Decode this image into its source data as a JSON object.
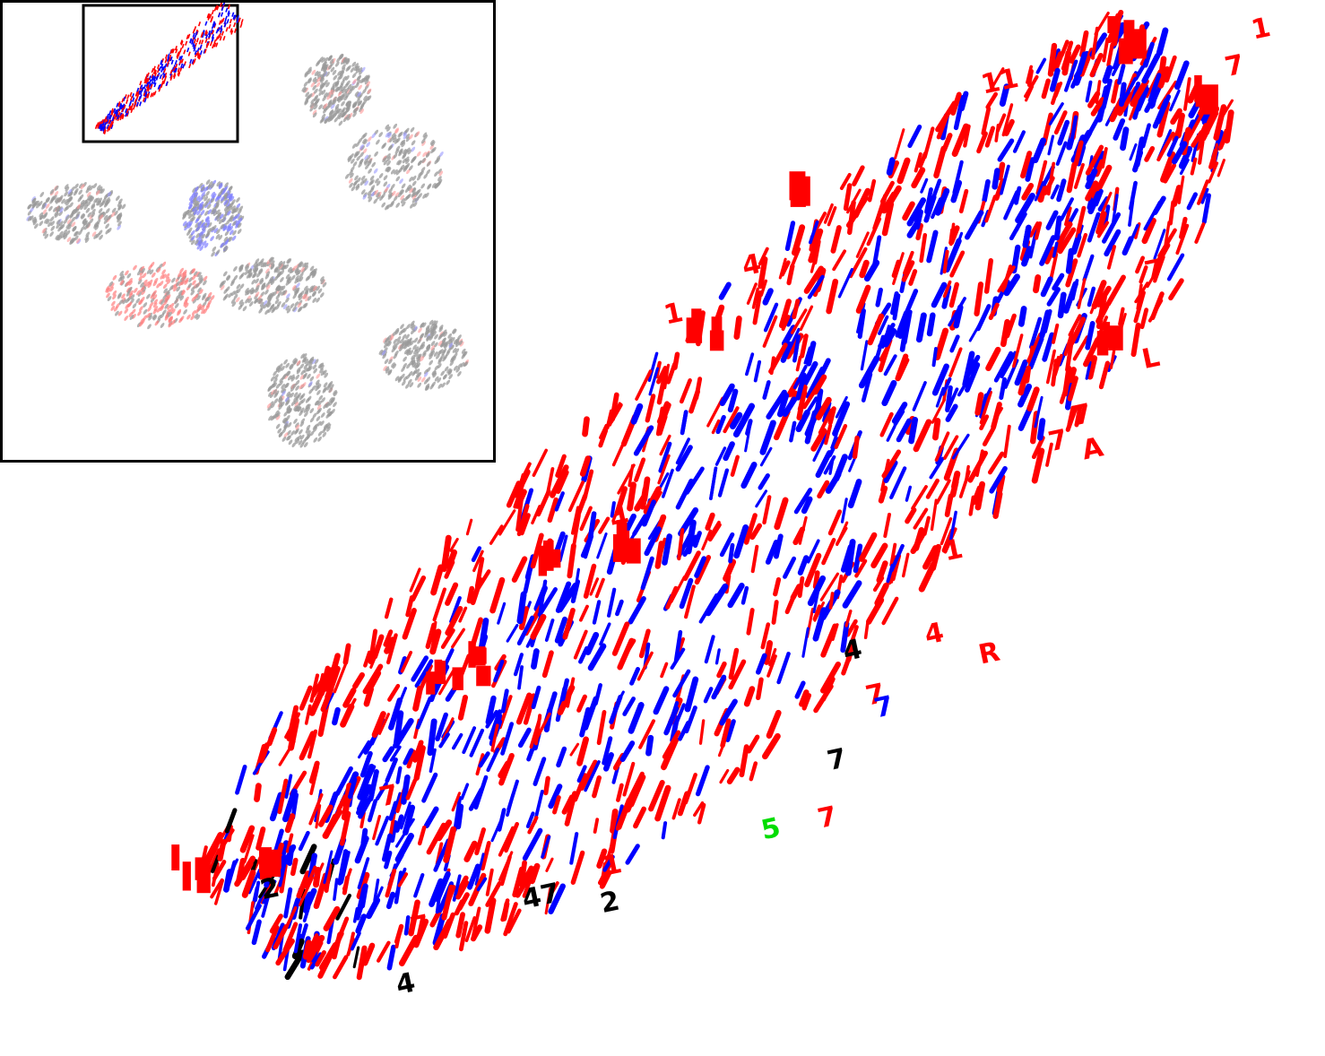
{
  "chart_data": {
    "type": "scatter",
    "title": "",
    "xlabel": "",
    "ylabel": "",
    "grid": false,
    "legend": "none",
    "description_of_marks": "handwritten digit thumbnails plotted at embedding coordinates",
    "colors": {
      "class_red": "#ff0000",
      "class_blue": "#0000ff",
      "class_black": "#000000",
      "class_green": "#00dd00",
      "context_gray": "#9a9a9a",
      "inset_frame": "#000000"
    },
    "main_view": {
      "xlim": [
        0,
        100
      ],
      "ylim": [
        0,
        100
      ],
      "labeled_glyphs": [
        {
          "text": "1",
          "x": 46.5,
          "y": 69.3,
          "color": "#ff0000"
        },
        {
          "text": "11",
          "x": 72.9,
          "y": 91.6,
          "color": "#ff0000"
        },
        {
          "text": "1",
          "x": 95.4,
          "y": 96.9,
          "color": "#ff0000"
        },
        {
          "text": "7",
          "x": 93.2,
          "y": 93.3,
          "color": "#ff0000"
        },
        {
          "text": "7",
          "x": 86.5,
          "y": 73.5,
          "color": "#ff0000"
        },
        {
          "text": "L",
          "x": 86.3,
          "y": 65.0,
          "color": "#ff0000"
        },
        {
          "text": "7",
          "x": 80.5,
          "y": 59.5,
          "color": "#ff0000"
        },
        {
          "text": "7",
          "x": 78.5,
          "y": 57.0,
          "color": "#ff0000"
        },
        {
          "text": "A",
          "x": 81.3,
          "y": 56.2,
          "color": "#ff0000"
        },
        {
          "text": "4",
          "x": 53.0,
          "y": 74.0,
          "color": "#ff0000"
        },
        {
          "text": "4",
          "x": 42.0,
          "y": 49.5,
          "color": "#ff0000"
        },
        {
          "text": "4",
          "x": 68.2,
          "y": 38.3,
          "color": "#ff0000"
        },
        {
          "text": "R",
          "x": 72.7,
          "y": 36.4,
          "color": "#ff0000"
        },
        {
          "text": "1",
          "x": 69.8,
          "y": 46.4,
          "color": "#ff0000"
        },
        {
          "text": "7",
          "x": 63.3,
          "y": 32.4,
          "color": "#ff0000"
        },
        {
          "text": "7",
          "x": 59.3,
          "y": 20.5,
          "color": "#ff0000"
        },
        {
          "text": "1",
          "x": 41.4,
          "y": 15.9,
          "color": "#ff0000"
        },
        {
          "text": "7",
          "x": 22.8,
          "y": 22.6,
          "color": "#ff0000"
        },
        {
          "text": "7",
          "x": 25.4,
          "y": 10.0,
          "color": "#ff0000"
        },
        {
          "text": "2",
          "x": 12.9,
          "y": 13.6,
          "color": "#000000"
        },
        {
          "text": "47",
          "x": 34.7,
          "y": 12.7,
          "color": "#000000"
        },
        {
          "text": "2",
          "x": 41.2,
          "y": 12.3,
          "color": "#000000"
        },
        {
          "text": "4",
          "x": 24.2,
          "y": 4.4,
          "color": "#000000"
        },
        {
          "text": "4",
          "x": 61.4,
          "y": 36.7,
          "color": "#000000"
        },
        {
          "text": "7",
          "x": 60.1,
          "y": 26.1,
          "color": "#000000"
        },
        {
          "text": "7",
          "x": 64.0,
          "y": 31.2,
          "color": "#0000ff"
        },
        {
          "text": "5",
          "x": 54.6,
          "y": 19.4,
          "color": "#00dd00"
        }
      ]
    },
    "overview": {
      "xlim": [
        0,
        100
      ],
      "ylim": [
        0,
        100
      ],
      "highlighted_region": "top-left",
      "clusters": [
        {
          "cx": 68,
          "cy": 81,
          "rx": 7,
          "ry": 7.5,
          "mix": "gray"
        },
        {
          "cx": 80,
          "cy": 64,
          "rx": 10,
          "ry": 9,
          "mix": "gray"
        },
        {
          "cx": 15,
          "cy": 54,
          "rx": 10,
          "ry": 6.5,
          "mix": "gray"
        },
        {
          "cx": 43,
          "cy": 53,
          "rx": 6,
          "ry": 8,
          "mix": "blue"
        },
        {
          "cx": 32,
          "cy": 36,
          "rx": 11,
          "ry": 7,
          "mix": "red"
        },
        {
          "cx": 55,
          "cy": 38,
          "rx": 11,
          "ry": 6,
          "mix": "gray"
        },
        {
          "cx": 86,
          "cy": 23,
          "rx": 9,
          "ry": 7.5,
          "mix": "gray"
        },
        {
          "cx": 61,
          "cy": 13,
          "rx": 7,
          "ry": 10,
          "mix": "gray"
        }
      ]
    }
  }
}
